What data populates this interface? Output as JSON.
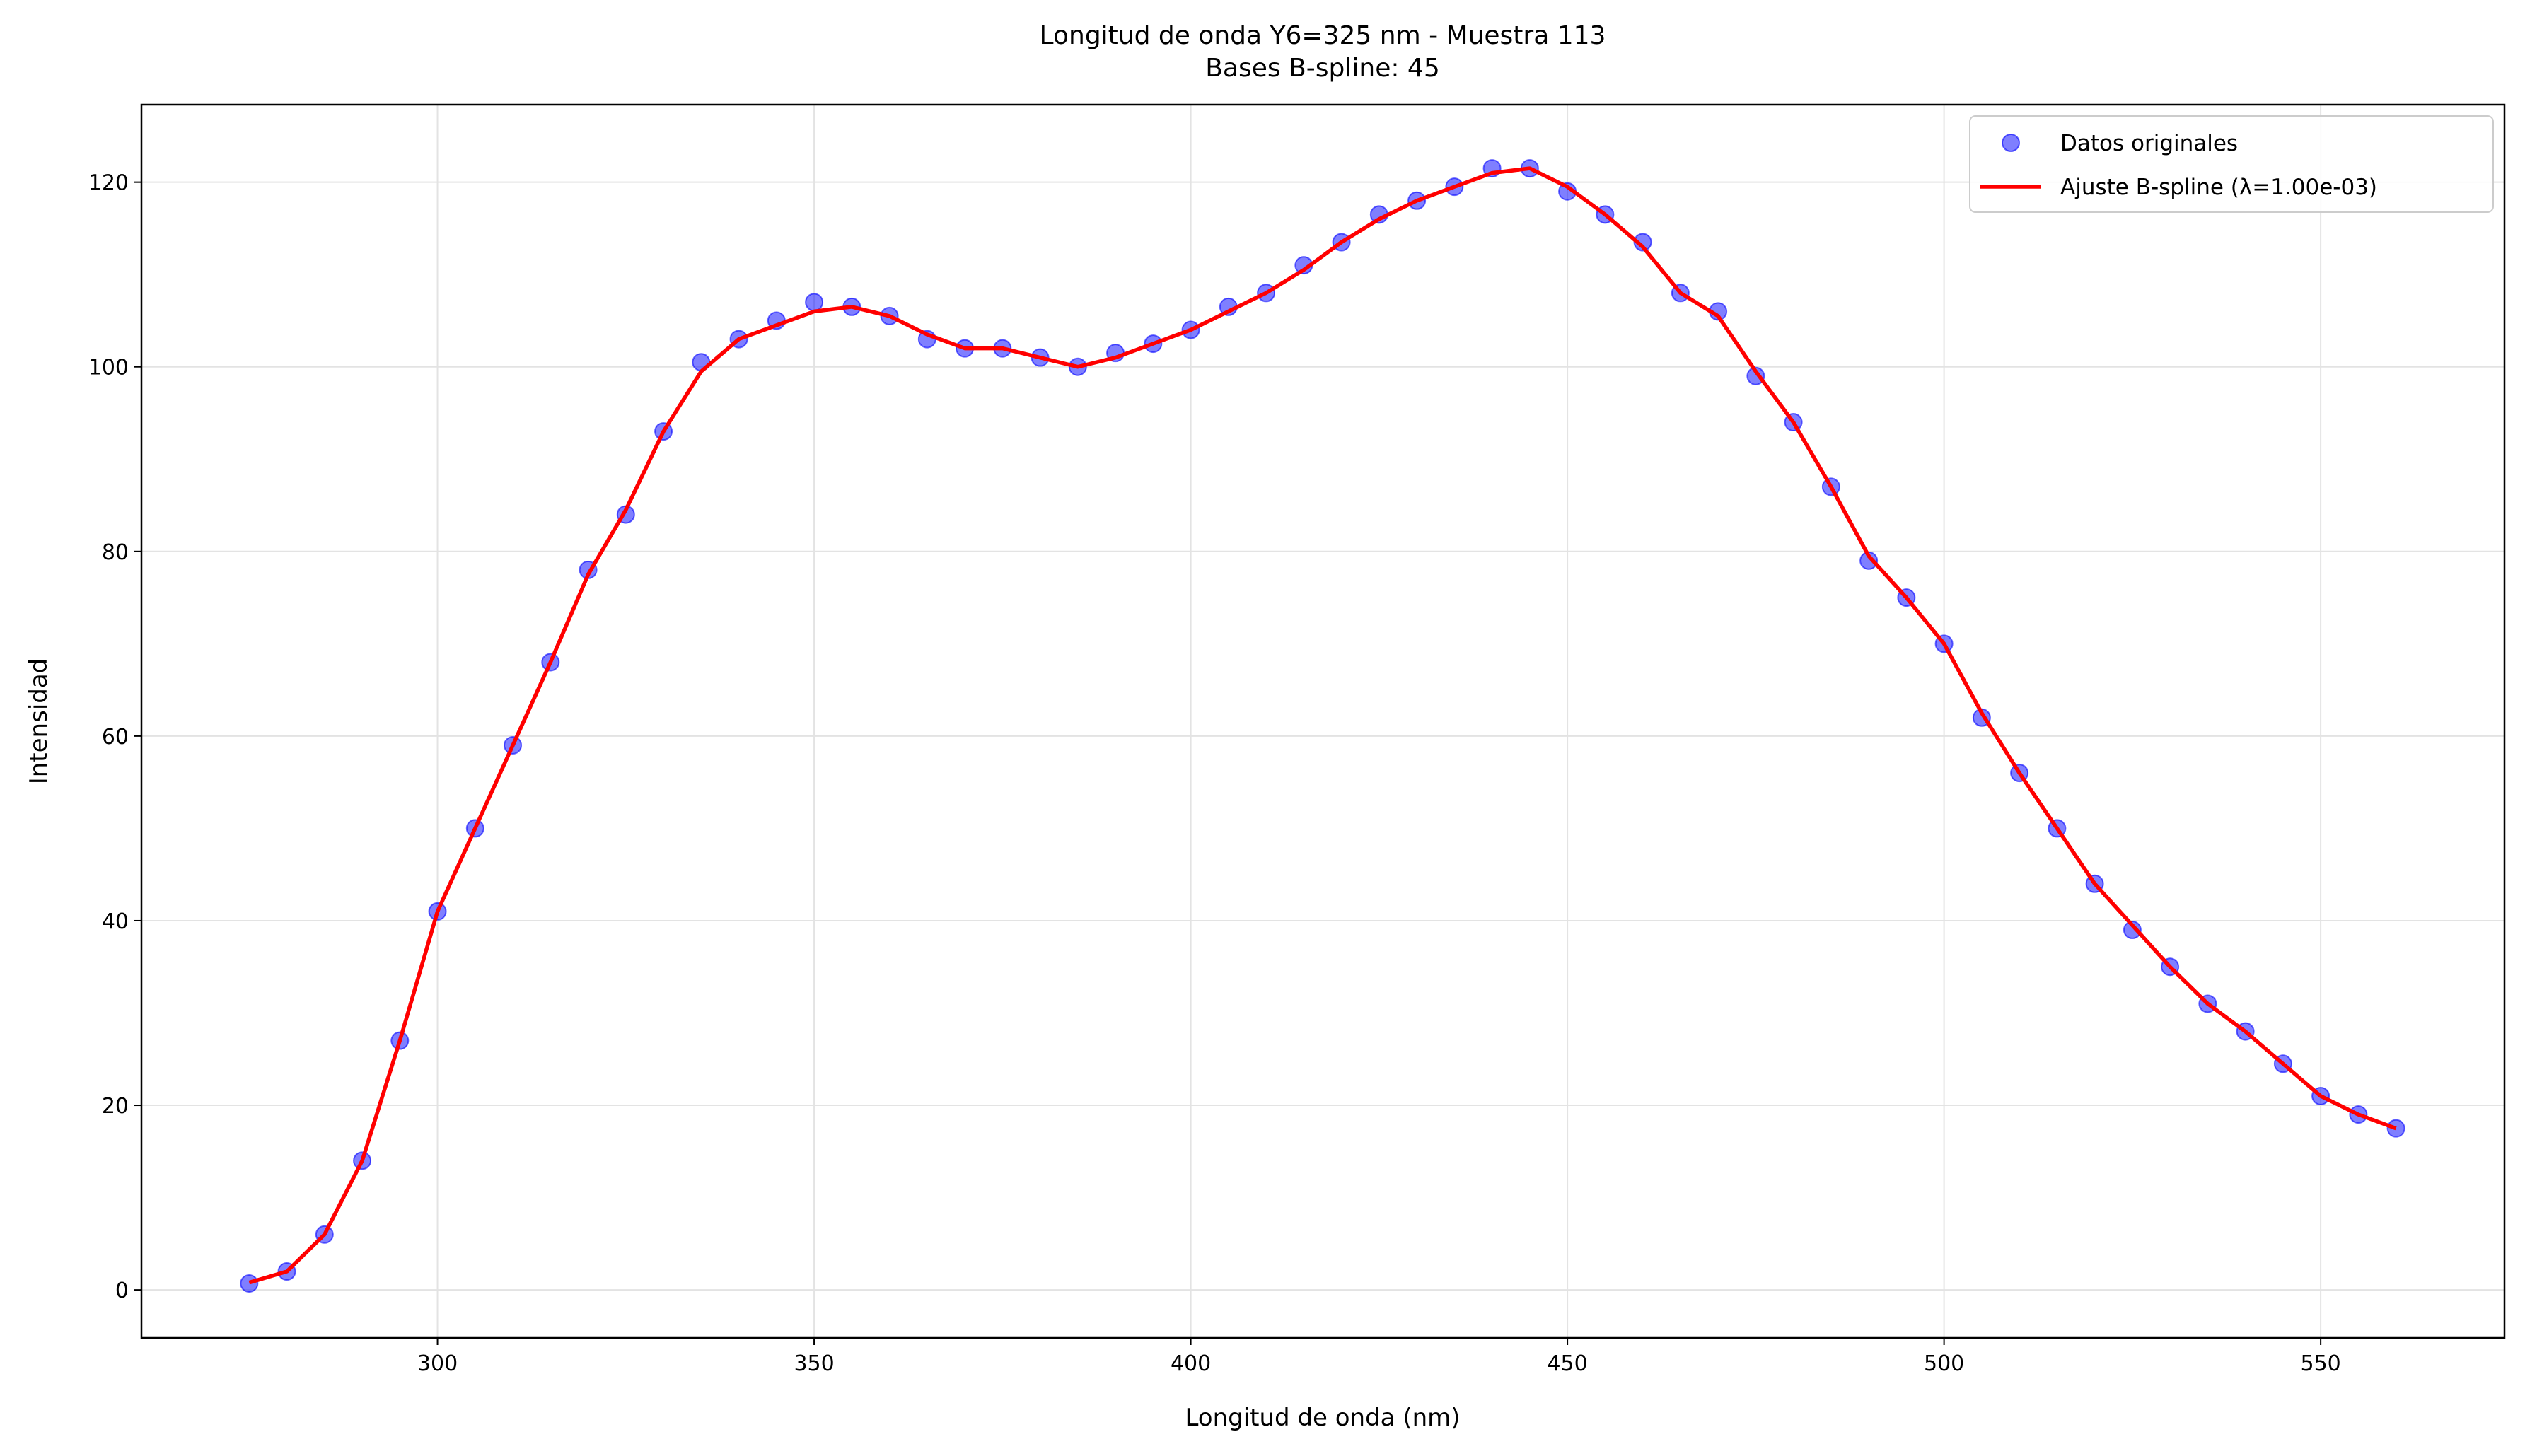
{
  "chart_data": {
    "type": "scatter-line",
    "title": "Longitud de onda Y6=325 nm - Muestra 113",
    "subtitle": "Bases B-spline: 45",
    "x_label": "Longitud de onda (nm)",
    "y_label": "Intensidad",
    "x": [
      275,
      280,
      285,
      290,
      295,
      300,
      305,
      310,
      315,
      320,
      325,
      330,
      335,
      340,
      345,
      350,
      355,
      360,
      365,
      370,
      375,
      380,
      385,
      390,
      395,
      400,
      405,
      410,
      415,
      420,
      425,
      430,
      435,
      440,
      445,
      450,
      455,
      460,
      465,
      470,
      475,
      480,
      485,
      490,
      495,
      500,
      505,
      510,
      515,
      520,
      525,
      530,
      535,
      540,
      545,
      550,
      555,
      560
    ],
    "series": [
      {
        "name": "Datos originales",
        "color": "#0000ff",
        "kind": "scatter",
        "values": [
          0.7,
          2,
          6,
          14,
          27,
          41,
          50,
          59,
          68,
          78,
          84,
          93,
          100.5,
          103,
          105,
          107,
          106.5,
          105.5,
          103,
          102,
          102,
          101,
          100,
          101.5,
          102.5,
          104,
          106.5,
          108,
          111,
          113.5,
          116.5,
          118,
          119.5,
          121.5,
          121.5,
          119,
          116.5,
          113.5,
          108,
          106,
          99,
          94,
          87,
          79,
          75,
          70,
          62,
          56,
          50,
          44,
          39,
          35,
          31,
          28,
          24.5,
          21,
          19,
          17.5
        ]
      },
      {
        "name": "Ajuste B-spline (λ=1.00e-03)",
        "color": "#ff0000",
        "kind": "line",
        "values": [
          0.8,
          2,
          6,
          14,
          27,
          41,
          50,
          59,
          68,
          77.5,
          84.5,
          93,
          99.5,
          103,
          104.5,
          106,
          106.5,
          105.5,
          103.5,
          102,
          102,
          101,
          100,
          101,
          102.5,
          104,
          106,
          108,
          110.5,
          113.5,
          116,
          118,
          119.5,
          121,
          121.5,
          119.5,
          116.5,
          113,
          108,
          105.5,
          99.5,
          94,
          87,
          79.5,
          75,
          70,
          62.5,
          56,
          50,
          44,
          39.5,
          35,
          31,
          28,
          24.5,
          21,
          19,
          17.5
        ]
      }
    ],
    "xlim": [
      260.7,
      574.4
    ],
    "ylim": [
      -5.2,
      128.4
    ],
    "xticks": [
      300,
      350,
      400,
      450,
      500,
      550
    ],
    "yticks": [
      0,
      20,
      40,
      60,
      80,
      100,
      120
    ],
    "grid": true,
    "legend": "upper right"
  }
}
